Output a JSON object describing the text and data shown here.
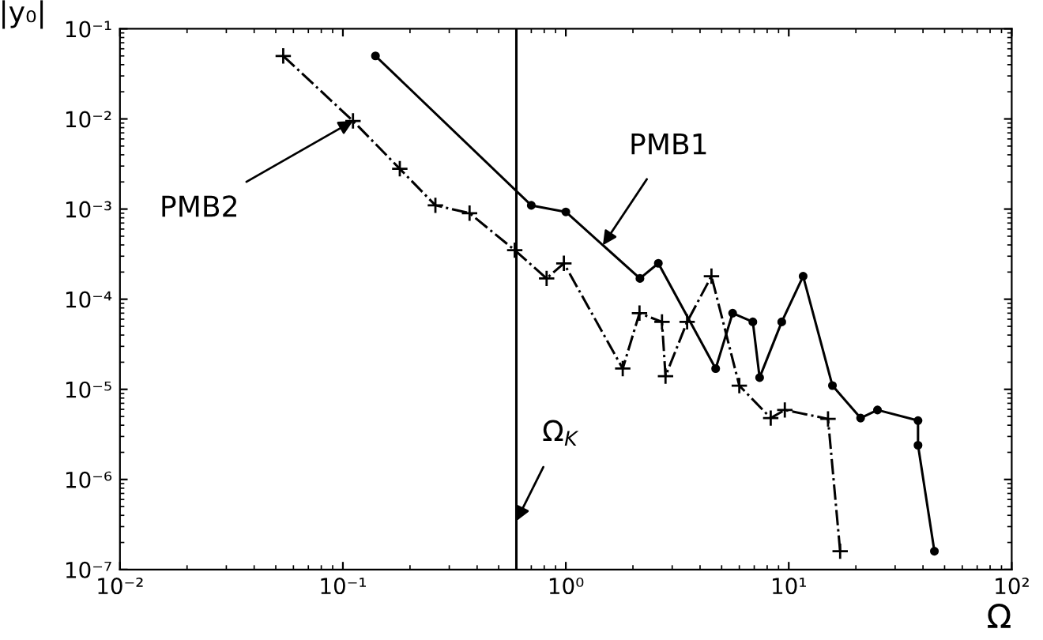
{
  "chart_data": {
    "type": "line",
    "xlabel": "Ω",
    "ylabel": "|y₀|",
    "log": "xy",
    "grid": false,
    "legend": false,
    "xlim": [
      0.01,
      100
    ],
    "ylim": [
      1e-07,
      0.1
    ],
    "xticks": [
      {
        "value": 0.01,
        "label": "10⁻²"
      },
      {
        "value": 0.1,
        "label": "10⁻¹"
      },
      {
        "value": 1,
        "label": "10⁰"
      },
      {
        "value": 10,
        "label": "10¹"
      },
      {
        "value": 100,
        "label": "10²"
      }
    ],
    "yticks": [
      {
        "value": 1e-07,
        "label": "10⁻⁷"
      },
      {
        "value": 1e-06,
        "label": "10⁻⁶"
      },
      {
        "value": 1e-05,
        "label": "10⁻⁵"
      },
      {
        "value": 0.0001,
        "label": "10⁻⁴"
      },
      {
        "value": 0.001,
        "label": "10⁻³"
      },
      {
        "value": 0.01,
        "label": "10⁻²"
      },
      {
        "value": 0.1,
        "label": "10⁻¹"
      }
    ],
    "series": [
      {
        "name": "PMB1",
        "color": "#000000",
        "marker": "circle",
        "line_style": "solid",
        "x": [
          0.14,
          0.7,
          1.0,
          2.15,
          2.6,
          4.7,
          5.6,
          6.9,
          7.4,
          9.3,
          11.6,
          15.7,
          21,
          25,
          38,
          38,
          45
        ],
        "values": [
          0.05,
          0.0011,
          0.00093,
          0.00017,
          0.00025,
          1.7e-05,
          7e-05,
          5.6e-05,
          1.35e-05,
          5.6e-05,
          0.00018,
          1.1e-05,
          4.8e-06,
          5.9e-06,
          4.5e-06,
          2.4e-06,
          1.6e-07
        ]
      },
      {
        "name": "PMB2",
        "color": "#000000",
        "marker": "cross",
        "line_style": "dashed",
        "x": [
          0.054,
          0.111,
          0.18,
          0.26,
          0.37,
          0.59,
          0.82,
          0.98,
          1.8,
          2.14,
          2.7,
          2.8,
          3.5,
          4.5,
          6.0,
          8.3,
          9.6,
          15,
          17
        ],
        "values": [
          0.05,
          0.0095,
          0.0028,
          0.0011,
          0.0009,
          0.00035,
          0.00017,
          0.00025,
          1.7e-05,
          7e-05,
          5.6e-05,
          1.4e-05,
          5.6e-05,
          0.00018,
          1.1e-05,
          4.8e-06,
          5.9e-06,
          4.7e-06,
          1.6e-07
        ]
      }
    ],
    "ref_lines": [
      {
        "axis": "x",
        "value": 0.6,
        "label": "Ω$_{K}$",
        "color": "#000000",
        "line_style": "solid"
      }
    ]
  }
}
